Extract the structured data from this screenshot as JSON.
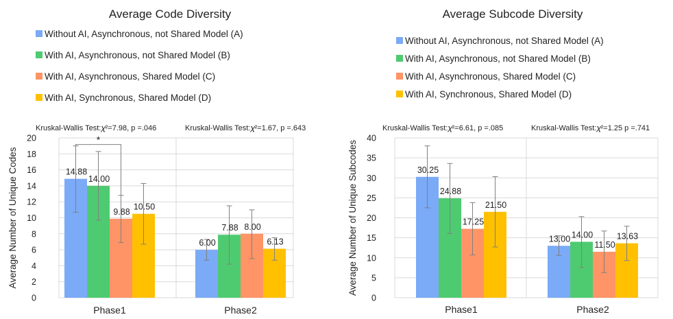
{
  "colors": {
    "A": "#7baaf7",
    "B": "#4ecb71",
    "C": "#ff9466",
    "D": "#ffc000",
    "grid": "#d9d9d9",
    "error_bar": "#808080"
  },
  "chart_data": [
    {
      "type": "bar",
      "title": "Average Code Diversity",
      "legend_position": "top",
      "ylabel": "Average Number of Unique Codes",
      "ylim": [
        0,
        20
      ],
      "yticks": [
        0,
        2,
        4,
        6,
        8,
        10,
        12,
        14,
        16,
        18,
        20
      ],
      "categories": [
        "Phase1",
        "Phase2"
      ],
      "grid": true,
      "tests": [
        "Kruskal-Wallis Test:𝜒²=7.98, p =.046",
        "Kruskal-Wallis Test:𝜒²=1.67, p =.643"
      ],
      "significance": {
        "label": "*",
        "category": "Phase1",
        "between": [
          0,
          2
        ]
      },
      "series": [
        {
          "name": "Without AI, Asynchronous, not Shared Model (A)",
          "key": "A",
          "values": [
            14.88,
            6.0
          ],
          "labels": [
            "14.88",
            "6.00"
          ],
          "err_low": [
            10.7,
            4.7
          ],
          "err_high": [
            19.0,
            7.3
          ]
        },
        {
          "name": "With AI, Asynchronous, not Shared Model (B)",
          "key": "B",
          "values": [
            14.0,
            7.88
          ],
          "labels": [
            "14.00",
            "7.88"
          ],
          "err_low": [
            9.7,
            4.2
          ],
          "err_high": [
            18.3,
            11.5
          ]
        },
        {
          "name": "With AI, Asynchronous, Shared Model (C)",
          "key": "C",
          "values": [
            9.88,
            8.0
          ],
          "labels": [
            "9.88",
            "8.00"
          ],
          "err_low": [
            6.9,
            4.9
          ],
          "err_high": [
            12.8,
            11.0
          ]
        },
        {
          "name": "With AI, Synchronous, Shared Model (D)",
          "key": "D",
          "values": [
            10.5,
            6.13
          ],
          "labels": [
            "10.50",
            "6.13"
          ],
          "err_low": [
            6.7,
            4.7
          ],
          "err_high": [
            14.3,
            7.5
          ]
        }
      ]
    },
    {
      "type": "bar",
      "title": "Average Subcode Diversity",
      "legend_position": "top",
      "ylabel": "Average Number of Unique Subcodes",
      "ylim": [
        0,
        40
      ],
      "yticks": [
        0,
        5,
        10,
        15,
        20,
        25,
        30,
        35,
        40
      ],
      "categories": [
        "Phase1",
        "Phase2"
      ],
      "grid": true,
      "tests": [
        "Kruskal-Wallis Test:𝜒²=6.61, p =.085",
        "Kruskal-Wallis Test:𝜒²=1.25 p =.741"
      ],
      "series": [
        {
          "name": "Without AI, Asynchronous, not Shared Model (A)",
          "key": "A",
          "values": [
            30.25,
            13.0
          ],
          "labels": [
            "30.25",
            "13.00"
          ],
          "err_low": [
            22.5,
            10.6
          ],
          "err_high": [
            38.0,
            15.5
          ]
        },
        {
          "name": "With AI, Asynchronous, not Shared Model (B)",
          "key": "B",
          "values": [
            24.88,
            14.0
          ],
          "labels": [
            "24.88",
            "14.00"
          ],
          "err_low": [
            16.1,
            7.6
          ],
          "err_high": [
            33.6,
            20.3
          ]
        },
        {
          "name": "With AI, Asynchronous, Shared Model (C)",
          "key": "C",
          "values": [
            17.25,
            11.5
          ],
          "labels": [
            "17.25",
            "11.50"
          ],
          "err_low": [
            10.7,
            6.3
          ],
          "err_high": [
            23.8,
            16.7
          ]
        },
        {
          "name": "With AI, Synchronous, Shared Model (D)",
          "key": "D",
          "values": [
            21.5,
            13.63
          ],
          "labels": [
            "21.50",
            "13.63"
          ],
          "err_low": [
            12.7,
            9.3
          ],
          "err_high": [
            30.3,
            17.9
          ]
        }
      ]
    }
  ]
}
